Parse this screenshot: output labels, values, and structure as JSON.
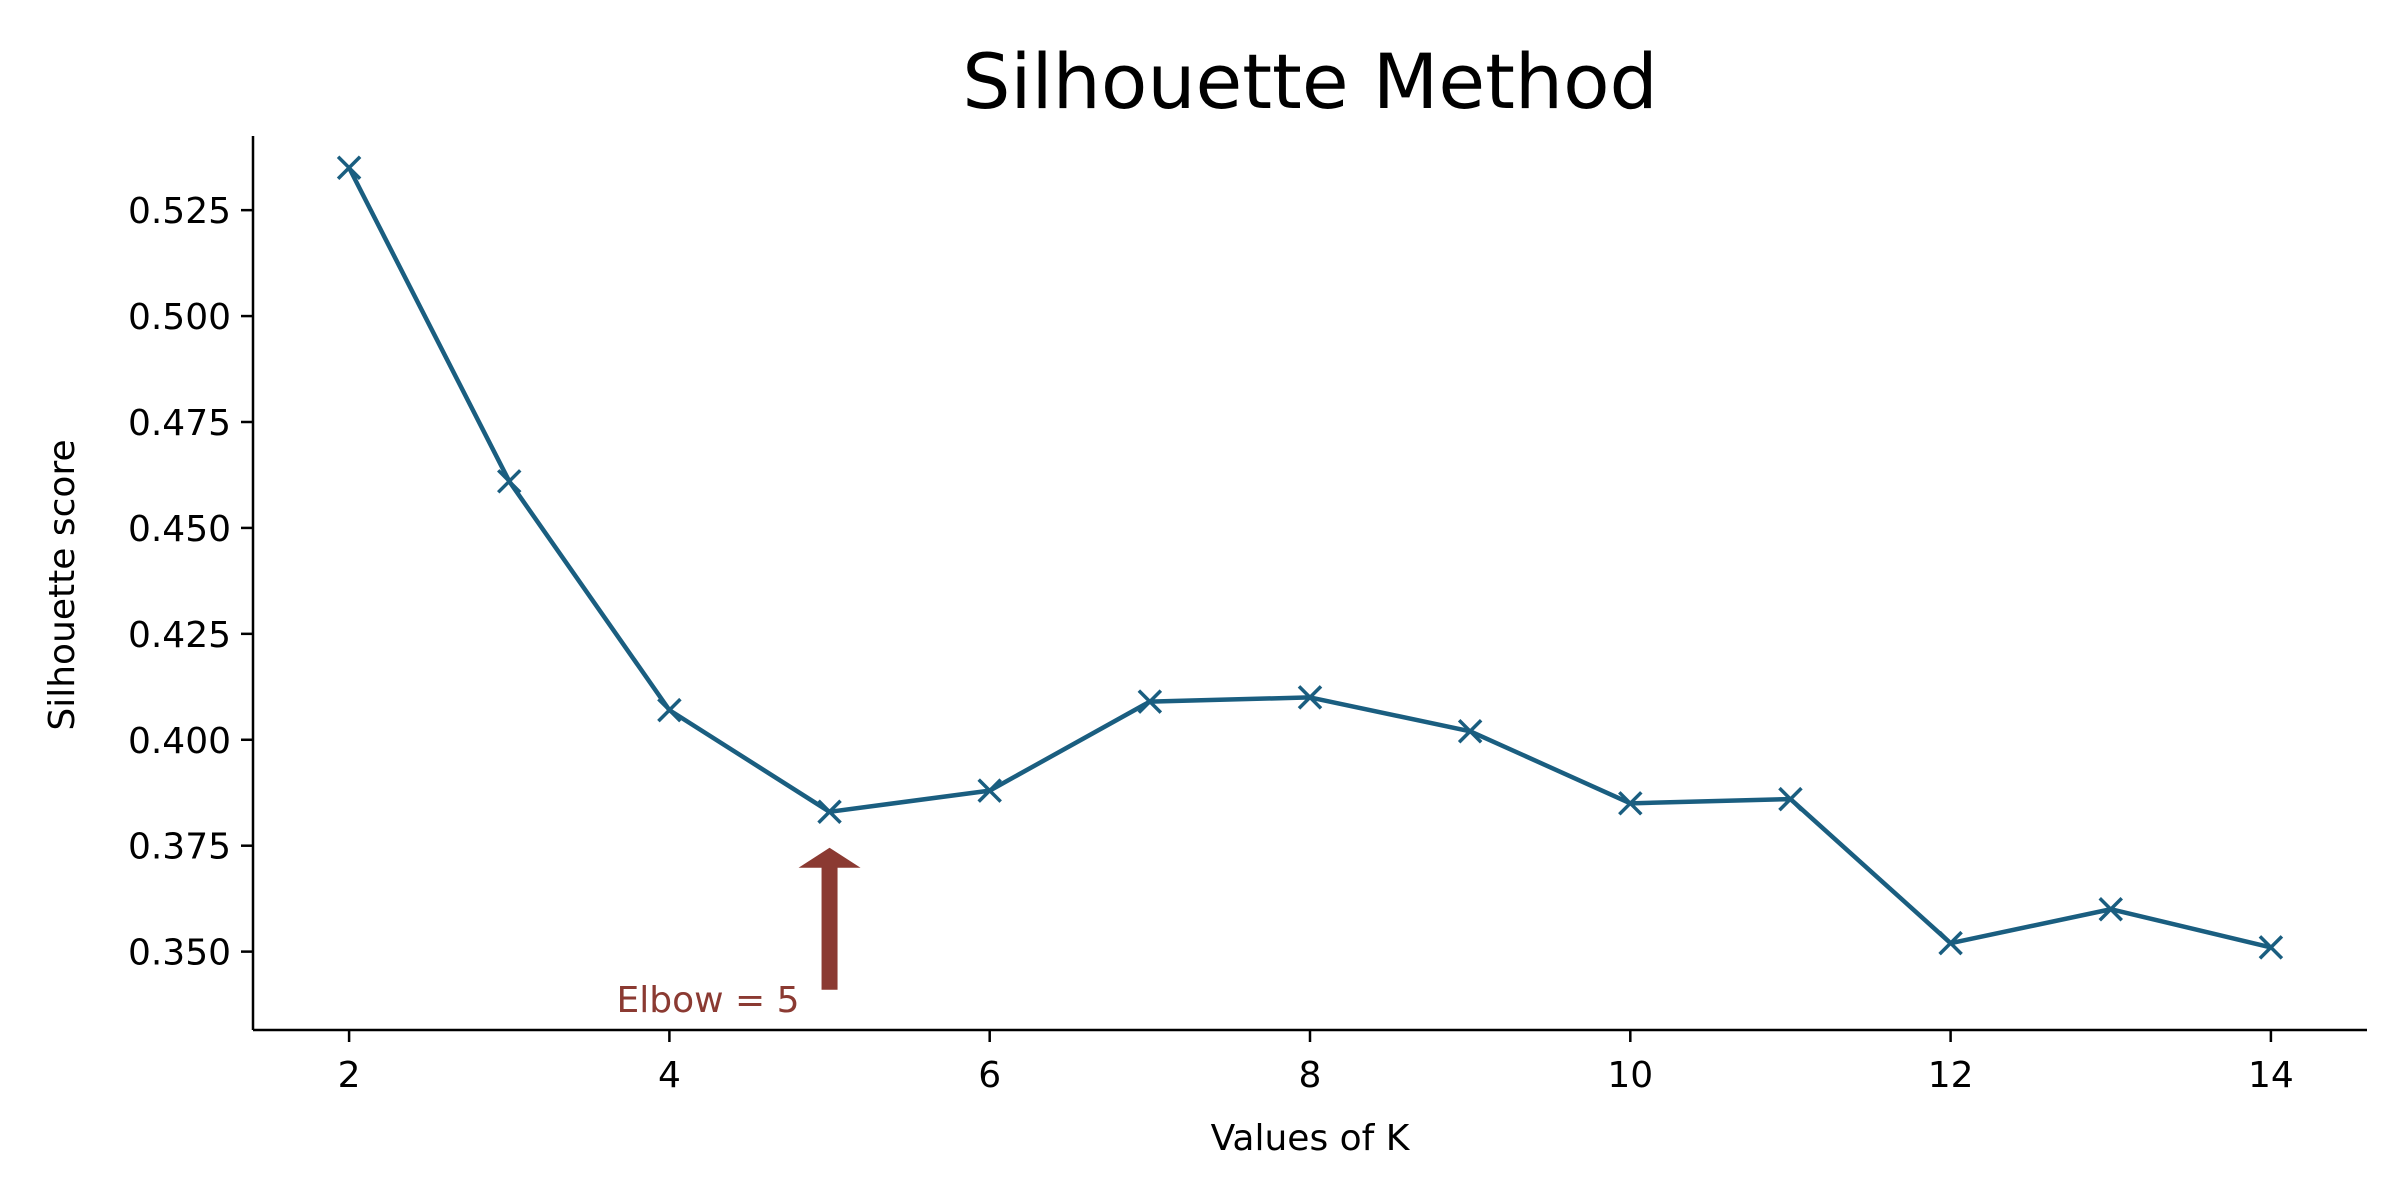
{
  "chart_data": {
    "type": "line",
    "title": "Silhouette Method",
    "xlabel": "Values of K",
    "ylabel": "Silhouette score",
    "x": [
      2,
      3,
      4,
      5,
      6,
      7,
      8,
      9,
      10,
      11,
      12,
      13,
      14
    ],
    "series": [
      {
        "values": [
          0.535,
          0.461,
          0.407,
          0.383,
          0.388,
          0.409,
          0.41,
          0.402,
          0.385,
          0.386,
          0.352,
          0.36,
          0.351
        ],
        "color": "#1a5e80",
        "marker": "x"
      }
    ],
    "xlim": [
      1.4,
      14.6
    ],
    "ylim": [
      0.3315,
      0.5425
    ],
    "xticks": [
      2,
      4,
      6,
      8,
      10,
      12,
      14
    ],
    "yticks": [
      0.35,
      0.375,
      0.4,
      0.425,
      0.45,
      0.475,
      0.5,
      0.525
    ],
    "ytick_labels": [
      "0.350",
      "0.375",
      "0.400",
      "0.425",
      "0.450",
      "0.475",
      "0.500",
      "0.525"
    ],
    "grid": false,
    "annotation": {
      "text": "Elbow = 5",
      "x": 5,
      "y": 0.383,
      "color": "#8b3a32"
    }
  }
}
